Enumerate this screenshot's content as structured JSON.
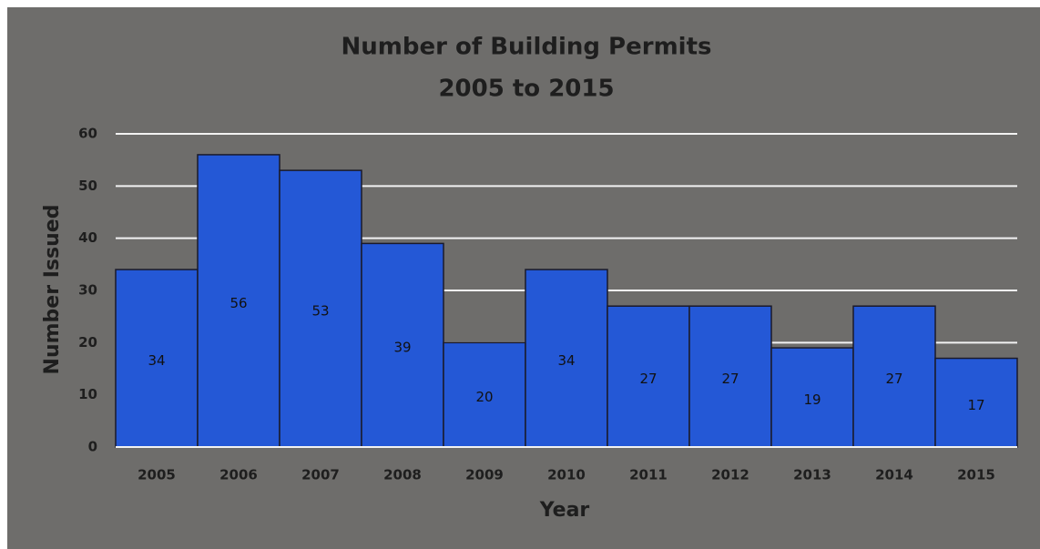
{
  "chart_data": {
    "type": "bar",
    "title": "Number of Building Permits",
    "subtitle": "2005 to 2015",
    "x_label": "Year",
    "y_label": "Number Issued",
    "categories": [
      "2005",
      "2006",
      "2007",
      "2008",
      "2009",
      "2010",
      "2011",
      "2012",
      "2013",
      "2014",
      "2015"
    ],
    "values": [
      34,
      56,
      53,
      39,
      20,
      34,
      27,
      27,
      19,
      27,
      17
    ],
    "color": "#2458d6",
    "ylim": [
      0,
      60
    ],
    "yticks": [
      0,
      10,
      20,
      30,
      40,
      50,
      60
    ],
    "grid": true
  }
}
